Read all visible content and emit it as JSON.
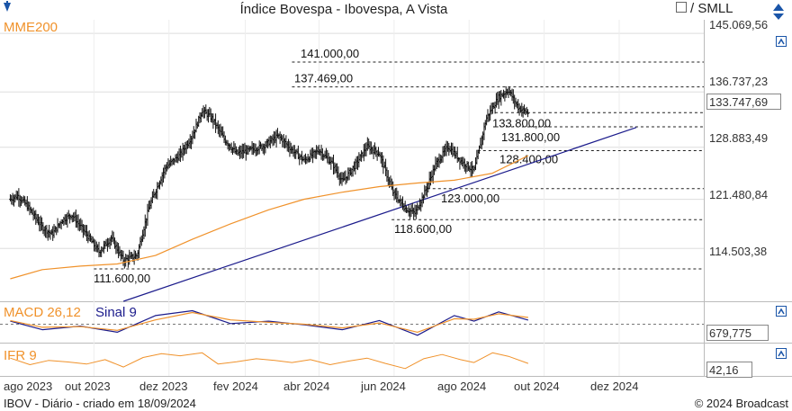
{
  "header": {
    "title": "Índice Bovespa - Ibovespa, A Vista",
    "compare_label": "/ SMLL",
    "compare_checked": false
  },
  "footer": {
    "left": "IBOV - Diário - criado em 18/09/2024",
    "right": "© 2024 Broadcast"
  },
  "colors": {
    "price": "#111111",
    "mme": "#f0922b",
    "trend": "#1c1c8c",
    "macd": "#1c1c8c",
    "signal": "#f0922b",
    "ifr": "#f0922b",
    "grid": "#dddddd",
    "icon": "#1a55a8"
  },
  "chart_data": [
    {
      "type": "ohlc",
      "title": "Índice Bovespa - Ibovespa, A Vista",
      "indicator_label": "MME200",
      "y_ticks": [
        114503.38,
        121480.84,
        128883.49,
        136737.23,
        145069.56
      ],
      "y_tick_labels": [
        "114.503,38",
        "121.480,84",
        "128.883,49",
        "136.737,23",
        "145.069,56"
      ],
      "y_range": [
        107000,
        147000
      ],
      "last_value": 133747.69,
      "last_value_label": "133.747,69",
      "x_ticks": [
        "ago 2023",
        "out 2023",
        "dez 2023",
        "fev 2024",
        "abr 2024",
        "jun 2024",
        "ago 2024",
        "out 2024",
        "dez 2024"
      ],
      "levels": [
        {
          "value": 141000,
          "label": "141.000,00"
        },
        {
          "value": 137469,
          "label": "137.469,00"
        },
        {
          "value": 133800,
          "label": "133.800,00"
        },
        {
          "value": 131800,
          "label": "131.800,00"
        },
        {
          "value": 128400,
          "label": "128.400,00"
        },
        {
          "value": 123000,
          "label": "123.000,00"
        },
        {
          "value": 118600,
          "label": "118.600,00"
        },
        {
          "value": 111600,
          "label": "111.600,00"
        }
      ],
      "trendline": [
        {
          "date": "2023-10-25",
          "value": 107000
        },
        {
          "date": "2024-12-15",
          "value": 131700
        }
      ],
      "price_path": [
        {
          "date": "2023-07-25",
          "value": 121500
        },
        {
          "date": "2023-07-31",
          "value": 122000
        },
        {
          "date": "2023-08-08",
          "value": 120500
        },
        {
          "date": "2023-08-20",
          "value": 117500
        },
        {
          "date": "2023-08-28",
          "value": 116500
        },
        {
          "date": "2023-09-05",
          "value": 118500
        },
        {
          "date": "2023-09-13",
          "value": 119300
        },
        {
          "date": "2023-09-25",
          "value": 116500
        },
        {
          "date": "2023-10-05",
          "value": 114000
        },
        {
          "date": "2023-10-15",
          "value": 116000
        },
        {
          "date": "2023-10-25",
          "value": 112800
        },
        {
          "date": "2023-11-05",
          "value": 113500
        },
        {
          "date": "2023-11-15",
          "value": 120500
        },
        {
          "date": "2023-11-28",
          "value": 126000
        },
        {
          "date": "2023-12-10",
          "value": 127800
        },
        {
          "date": "2023-12-20",
          "value": 130500
        },
        {
          "date": "2023-12-28",
          "value": 134100
        },
        {
          "date": "2024-01-05",
          "value": 133000
        },
        {
          "date": "2024-01-15",
          "value": 130000
        },
        {
          "date": "2024-01-25",
          "value": 128000
        },
        {
          "date": "2024-02-05",
          "value": 128500
        },
        {
          "date": "2024-02-15",
          "value": 129000
        },
        {
          "date": "2024-02-28",
          "value": 130500
        },
        {
          "date": "2024-03-10",
          "value": 128500
        },
        {
          "date": "2024-03-20",
          "value": 127000
        },
        {
          "date": "2024-04-01",
          "value": 128500
        },
        {
          "date": "2024-04-12",
          "value": 126500
        },
        {
          "date": "2024-04-20",
          "value": 124000
        },
        {
          "date": "2024-05-01",
          "value": 126500
        },
        {
          "date": "2024-05-10",
          "value": 129000
        },
        {
          "date": "2024-05-20",
          "value": 128000
        },
        {
          "date": "2024-05-31",
          "value": 122500
        },
        {
          "date": "2024-06-10",
          "value": 120200
        },
        {
          "date": "2024-06-18",
          "value": 119500
        },
        {
          "date": "2024-06-26",
          "value": 122500
        },
        {
          "date": "2024-07-05",
          "value": 126500
        },
        {
          "date": "2024-07-15",
          "value": 129000
        },
        {
          "date": "2024-07-25",
          "value": 127000
        },
        {
          "date": "2024-08-05",
          "value": 125500
        },
        {
          "date": "2024-08-15",
          "value": 133000
        },
        {
          "date": "2024-08-25",
          "value": 136000
        },
        {
          "date": "2024-09-02",
          "value": 137000
        },
        {
          "date": "2024-09-10",
          "value": 134500
        },
        {
          "date": "2024-09-18",
          "value": 133747.69
        }
      ],
      "mme200_path": [
        {
          "date": "2023-07-25",
          "value": 110200
        },
        {
          "date": "2023-08-20",
          "value": 111500
        },
        {
          "date": "2023-09-20",
          "value": 112000
        },
        {
          "date": "2023-10-20",
          "value": 112300
        },
        {
          "date": "2023-11-20",
          "value": 113500
        },
        {
          "date": "2023-12-20",
          "value": 115800
        },
        {
          "date": "2024-01-20",
          "value": 118000
        },
        {
          "date": "2024-02-20",
          "value": 120000
        },
        {
          "date": "2024-03-20",
          "value": 121500
        },
        {
          "date": "2024-04-20",
          "value": 122500
        },
        {
          "date": "2024-05-20",
          "value": 123300
        },
        {
          "date": "2024-06-20",
          "value": 123800
        },
        {
          "date": "2024-07-20",
          "value": 124200
        },
        {
          "date": "2024-08-20",
          "value": 125200
        },
        {
          "date": "2024-09-18",
          "value": 127700
        }
      ]
    },
    {
      "type": "line",
      "title": "MACD 26,12",
      "signal_label": "Sinal 9",
      "last_value": 679.775,
      "last_value_label": "679,775",
      "y_range": [
        -3000,
        3000
      ],
      "series": [
        {
          "name": "MACD 26,12",
          "points": [
            {
              "date": "2023-07-25",
              "value": 500
            },
            {
              "date": "2023-08-20",
              "value": -900
            },
            {
              "date": "2023-09-20",
              "value": -300
            },
            {
              "date": "2023-10-20",
              "value": -1300
            },
            {
              "date": "2023-11-20",
              "value": 1400
            },
            {
              "date": "2023-12-20",
              "value": 2200
            },
            {
              "date": "2024-01-20",
              "value": 100
            },
            {
              "date": "2024-02-20",
              "value": 500
            },
            {
              "date": "2024-03-20",
              "value": -100
            },
            {
              "date": "2024-04-20",
              "value": -900
            },
            {
              "date": "2024-05-20",
              "value": 600
            },
            {
              "date": "2024-06-20",
              "value": -1800
            },
            {
              "date": "2024-07-20",
              "value": 1400
            },
            {
              "date": "2024-08-05",
              "value": 500
            },
            {
              "date": "2024-08-25",
              "value": 2000
            },
            {
              "date": "2024-09-18",
              "value": 680
            }
          ]
        },
        {
          "name": "Sinal 9",
          "points": [
            {
              "date": "2023-07-25",
              "value": 600
            },
            {
              "date": "2023-08-20",
              "value": -500
            },
            {
              "date": "2023-09-20",
              "value": -400
            },
            {
              "date": "2023-10-20",
              "value": -1000
            },
            {
              "date": "2023-11-20",
              "value": 700
            },
            {
              "date": "2023-12-20",
              "value": 1900
            },
            {
              "date": "2024-01-20",
              "value": 700
            },
            {
              "date": "2024-02-20",
              "value": 300
            },
            {
              "date": "2024-03-20",
              "value": 0
            },
            {
              "date": "2024-04-20",
              "value": -600
            },
            {
              "date": "2024-05-20",
              "value": 200
            },
            {
              "date": "2024-06-20",
              "value": -1300
            },
            {
              "date": "2024-07-20",
              "value": 900
            },
            {
              "date": "2024-08-05",
              "value": 800
            },
            {
              "date": "2024-08-25",
              "value": 1700
            },
            {
              "date": "2024-09-18",
              "value": 1100
            }
          ]
        }
      ]
    },
    {
      "type": "line",
      "title": "IFR 9",
      "last_value": 42.16,
      "last_value_label": "42,16",
      "y_range": [
        0,
        100
      ],
      "series": [
        {
          "name": "IFR 9",
          "points": [
            {
              "date": "2023-07-25",
              "value": 60
            },
            {
              "date": "2023-08-10",
              "value": 38
            },
            {
              "date": "2023-08-25",
              "value": 52
            },
            {
              "date": "2023-09-10",
              "value": 47
            },
            {
              "date": "2023-09-25",
              "value": 40
            },
            {
              "date": "2023-10-10",
              "value": 55
            },
            {
              "date": "2023-10-25",
              "value": 30
            },
            {
              "date": "2023-11-10",
              "value": 62
            },
            {
              "date": "2023-11-25",
              "value": 75
            },
            {
              "date": "2023-12-10",
              "value": 68
            },
            {
              "date": "2023-12-28",
              "value": 78
            },
            {
              "date": "2024-01-10",
              "value": 40
            },
            {
              "date": "2024-01-25",
              "value": 48
            },
            {
              "date": "2024-02-10",
              "value": 58
            },
            {
              "date": "2024-02-25",
              "value": 52
            },
            {
              "date": "2024-03-10",
              "value": 45
            },
            {
              "date": "2024-03-25",
              "value": 55
            },
            {
              "date": "2024-04-10",
              "value": 38
            },
            {
              "date": "2024-04-25",
              "value": 50
            },
            {
              "date": "2024-05-10",
              "value": 60
            },
            {
              "date": "2024-05-25",
              "value": 42
            },
            {
              "date": "2024-06-10",
              "value": 25
            },
            {
              "date": "2024-06-25",
              "value": 58
            },
            {
              "date": "2024-07-10",
              "value": 72
            },
            {
              "date": "2024-07-25",
              "value": 55
            },
            {
              "date": "2024-08-05",
              "value": 45
            },
            {
              "date": "2024-08-20",
              "value": 78
            },
            {
              "date": "2024-09-02",
              "value": 66
            },
            {
              "date": "2024-09-18",
              "value": 42.16
            }
          ]
        }
      ]
    }
  ]
}
